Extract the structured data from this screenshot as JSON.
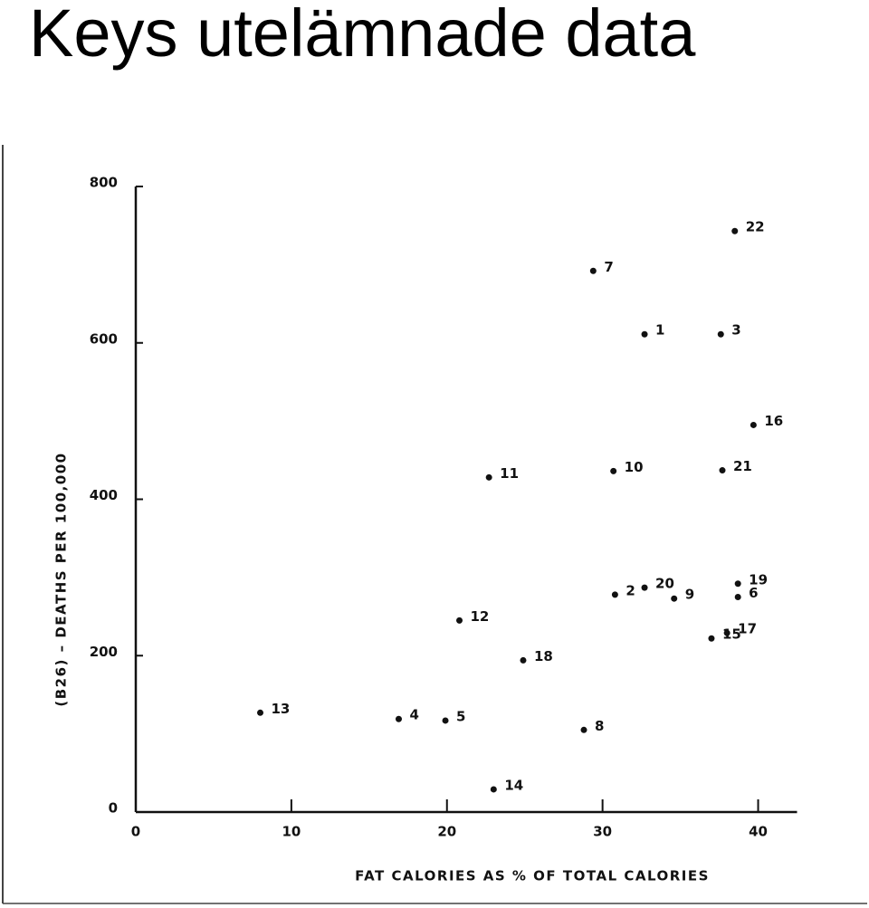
{
  "chart_data": {
    "type": "scatter",
    "title": "Keys utelämnade data",
    "x_label": "FAT CALORIES AS % OF TOTAL CALORIES",
    "y_label": "(B26) – DEATHS PER 100,000",
    "x": [
      8.0,
      16.9,
      19.9,
      23.0,
      20.8,
      24.9,
      22.7,
      28.8,
      29.4,
      32.7,
      30.7,
      30.8,
      32.7,
      34.6,
      38.5,
      37.6,
      39.7,
      37.7,
      38.7,
      38.7,
      38.0,
      37.0
    ],
    "values": [
      127,
      119,
      117,
      29,
      245,
      194,
      428,
      105,
      692,
      611,
      436,
      278,
      287,
      273,
      743,
      611,
      495,
      437,
      292,
      275,
      229,
      222
    ],
    "point_labels": [
      "13",
      "4",
      "5",
      "14",
      "12",
      "18",
      "11",
      "8",
      "7",
      "1",
      "10",
      "2",
      "20",
      "9",
      "22",
      "3",
      "16",
      "21",
      "19",
      "6",
      "17",
      "15"
    ],
    "color": "#111111",
    "xlim": [
      0,
      42.5
    ],
    "ylim": [
      0,
      800
    ],
    "xticks": [
      0,
      10,
      20,
      30,
      40
    ],
    "yticks": [
      0,
      200,
      400,
      600,
      800
    ],
    "grid": false
  }
}
